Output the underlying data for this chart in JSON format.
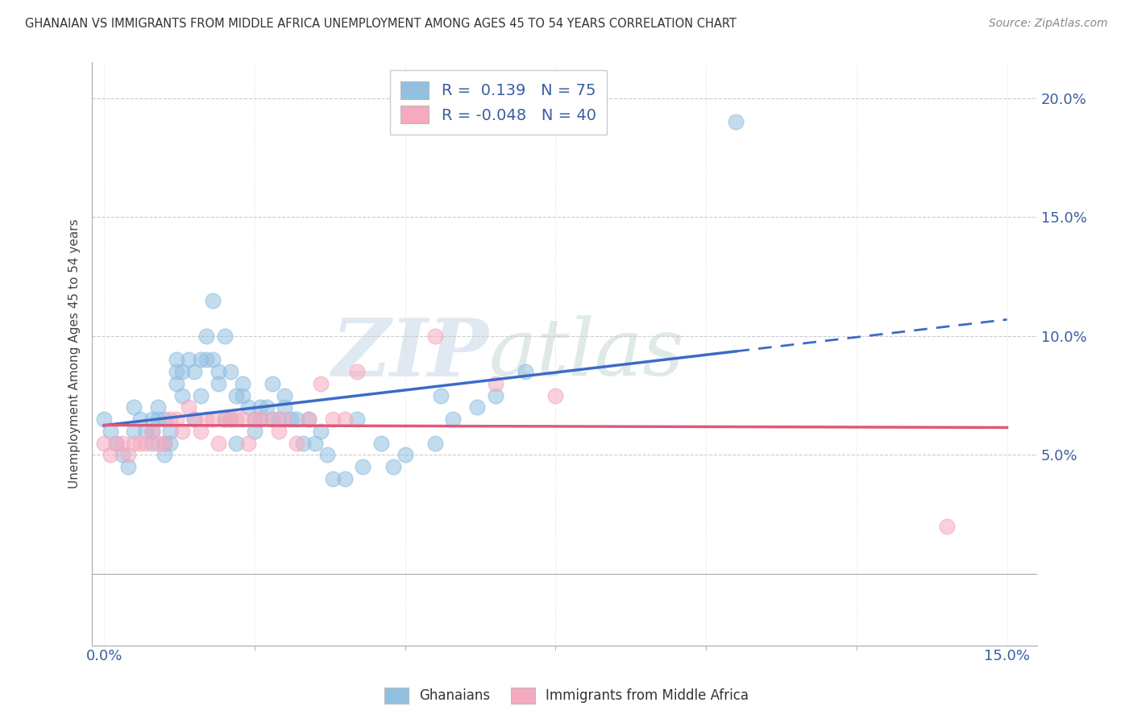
{
  "title": "GHANAIAN VS IMMIGRANTS FROM MIDDLE AFRICA UNEMPLOYMENT AMONG AGES 45 TO 54 YEARS CORRELATION CHART",
  "source": "Source: ZipAtlas.com",
  "ylabel": "Unemployment Among Ages 45 to 54 years",
  "xlim": [
    -0.002,
    0.155
  ],
  "ylim": [
    -0.03,
    0.215
  ],
  "xticks": [
    0.0,
    0.15
  ],
  "yticks": [
    0.05,
    0.1,
    0.15,
    0.2
  ],
  "xtick_labels": [
    "0.0%",
    "15.0%"
  ],
  "ytick_labels": [
    "5.0%",
    "10.0%",
    "15.0%",
    "20.0%"
  ],
  "ghanaian_R": 0.139,
  "ghanaian_N": 75,
  "immigrant_R": -0.048,
  "immigrant_N": 40,
  "watermark_1": "ZIP",
  "watermark_2": "atlas",
  "legend_label_1": "Ghanaians",
  "legend_label_2": "Immigrants from Middle Africa",
  "blue_color": "#92C0E0",
  "pink_color": "#F5AABF",
  "blue_line_color": "#3B6BC8",
  "pink_line_color": "#E05878",
  "blue_marker_edge": "#7EB0D8",
  "pink_marker_edge": "#F090A8",
  "ghanaian_x": [
    0.0,
    0.001,
    0.002,
    0.003,
    0.004,
    0.005,
    0.005,
    0.006,
    0.007,
    0.008,
    0.008,
    0.008,
    0.009,
    0.009,
    0.01,
    0.01,
    0.01,
    0.011,
    0.011,
    0.012,
    0.012,
    0.012,
    0.013,
    0.013,
    0.014,
    0.015,
    0.015,
    0.016,
    0.016,
    0.017,
    0.017,
    0.018,
    0.018,
    0.019,
    0.019,
    0.02,
    0.02,
    0.021,
    0.021,
    0.022,
    0.022,
    0.023,
    0.023,
    0.024,
    0.025,
    0.025,
    0.026,
    0.026,
    0.027,
    0.028,
    0.028,
    0.029,
    0.03,
    0.03,
    0.031,
    0.032,
    0.033,
    0.034,
    0.035,
    0.036,
    0.037,
    0.038,
    0.04,
    0.042,
    0.043,
    0.046,
    0.048,
    0.05,
    0.055,
    0.056,
    0.058,
    0.062,
    0.065,
    0.07,
    0.105
  ],
  "ghanaian_y": [
    0.065,
    0.06,
    0.055,
    0.05,
    0.045,
    0.07,
    0.06,
    0.065,
    0.06,
    0.065,
    0.055,
    0.06,
    0.07,
    0.065,
    0.065,
    0.055,
    0.05,
    0.06,
    0.055,
    0.085,
    0.09,
    0.08,
    0.085,
    0.075,
    0.09,
    0.085,
    0.065,
    0.09,
    0.075,
    0.09,
    0.1,
    0.115,
    0.09,
    0.085,
    0.08,
    0.1,
    0.065,
    0.085,
    0.065,
    0.055,
    0.075,
    0.075,
    0.08,
    0.07,
    0.065,
    0.06,
    0.065,
    0.07,
    0.07,
    0.065,
    0.08,
    0.065,
    0.07,
    0.075,
    0.065,
    0.065,
    0.055,
    0.065,
    0.055,
    0.06,
    0.05,
    0.04,
    0.04,
    0.065,
    0.045,
    0.055,
    0.045,
    0.05,
    0.055,
    0.075,
    0.065,
    0.07,
    0.075,
    0.085,
    0.19
  ],
  "immigrant_x": [
    0.0,
    0.001,
    0.002,
    0.003,
    0.004,
    0.005,
    0.006,
    0.007,
    0.008,
    0.009,
    0.01,
    0.011,
    0.012,
    0.013,
    0.014,
    0.015,
    0.016,
    0.017,
    0.018,
    0.019,
    0.02,
    0.021,
    0.022,
    0.023,
    0.024,
    0.025,
    0.026,
    0.028,
    0.029,
    0.03,
    0.032,
    0.034,
    0.036,
    0.038,
    0.04,
    0.042,
    0.055,
    0.065,
    0.075,
    0.14
  ],
  "immigrant_y": [
    0.055,
    0.05,
    0.055,
    0.055,
    0.05,
    0.055,
    0.055,
    0.055,
    0.06,
    0.055,
    0.055,
    0.065,
    0.065,
    0.06,
    0.07,
    0.065,
    0.06,
    0.065,
    0.065,
    0.055,
    0.065,
    0.065,
    0.065,
    0.065,
    0.055,
    0.065,
    0.065,
    0.065,
    0.06,
    0.065,
    0.055,
    0.065,
    0.08,
    0.065,
    0.065,
    0.085,
    0.1,
    0.08,
    0.075,
    0.02
  ]
}
